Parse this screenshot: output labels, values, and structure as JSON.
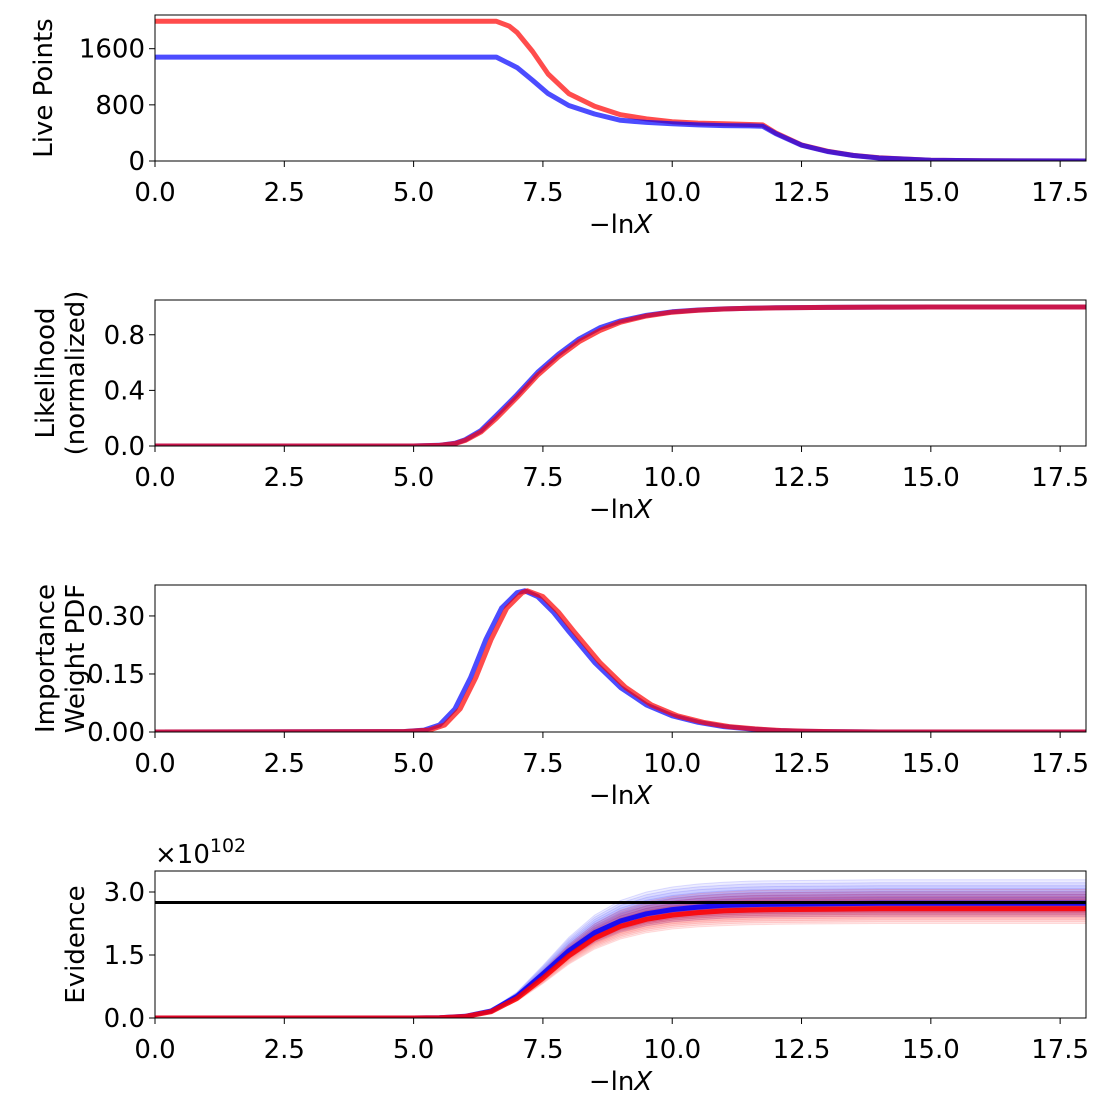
{
  "colors": {
    "run_a": "#0000ff",
    "run_b": "#ff0000",
    "reference": "#000000",
    "axes": "#000000",
    "background": "#ffffff"
  },
  "chart_data": [
    {
      "type": "line",
      "xlabel": "−lnX",
      "ylabel": "Live Points",
      "xlim": [
        0,
        18
      ],
      "ylim": [
        0,
        2080
      ],
      "xticks": [
        "0.0",
        "2.5",
        "5.0",
        "7.5",
        "10.0",
        "12.5",
        "15.0",
        "17.5"
      ],
      "yticks": [
        "0",
        "800",
        "1600"
      ],
      "ytick_values": [
        0,
        800,
        1600
      ],
      "series": [
        {
          "color": "#ff0000",
          "x": [
            0,
            6.6,
            6.85,
            7.0,
            7.3,
            7.6,
            8.0,
            8.5,
            9.0,
            9.5,
            10.0,
            10.5,
            11.0,
            11.5,
            11.75,
            12.0,
            12.5,
            13.0,
            13.5,
            14.0,
            15.0,
            16.0,
            18.0
          ],
          "y": [
            1990,
            1990,
            1920,
            1830,
            1560,
            1240,
            960,
            780,
            660,
            600,
            560,
            540,
            530,
            520,
            515,
            400,
            230,
            140,
            80,
            45,
            12,
            3,
            0
          ]
        },
        {
          "color": "#0000ff",
          "x": [
            0,
            6.6,
            7.0,
            7.3,
            7.6,
            8.0,
            8.5,
            9.0,
            9.5,
            10.0,
            10.5,
            11.0,
            11.5,
            11.75,
            12.0,
            12.5,
            13.0,
            13.5,
            14.0,
            15.0,
            16.0,
            18.0
          ],
          "y": [
            1480,
            1480,
            1330,
            1150,
            960,
            790,
            670,
            580,
            550,
            530,
            515,
            505,
            500,
            495,
            390,
            225,
            135,
            78,
            43,
            11,
            3,
            0
          ]
        }
      ]
    },
    {
      "type": "line",
      "xlabel": "−lnX",
      "ylabel": "Likelihood",
      "ylabel2": "(normalized)",
      "xlim": [
        0,
        18
      ],
      "ylim": [
        0,
        1.05
      ],
      "xticks": [
        "0.0",
        "2.5",
        "5.0",
        "7.5",
        "10.0",
        "12.5",
        "15.0",
        "17.5"
      ],
      "yticks": [
        "0.0",
        "0.4",
        "0.8"
      ],
      "ytick_values": [
        0,
        0.4,
        0.8
      ],
      "series": [
        {
          "color": "#0000ff",
          "x": [
            0,
            5.0,
            5.5,
            5.8,
            6.0,
            6.3,
            6.6,
            7.0,
            7.4,
            7.8,
            8.2,
            8.6,
            9.0,
            9.5,
            10.0,
            10.5,
            11.0,
            11.5,
            12.0,
            13.0,
            14.0,
            15.0,
            18.0
          ],
          "y": [
            0,
            0,
            0.005,
            0.02,
            0.045,
            0.11,
            0.22,
            0.37,
            0.53,
            0.66,
            0.77,
            0.85,
            0.9,
            0.94,
            0.965,
            0.978,
            0.986,
            0.991,
            0.994,
            0.997,
            0.999,
            1.0,
            1.0
          ]
        },
        {
          "color": "#ff0000",
          "x": [
            0,
            5.0,
            5.5,
            5.8,
            6.0,
            6.3,
            6.6,
            7.0,
            7.4,
            7.8,
            8.2,
            8.6,
            9.0,
            9.5,
            10.0,
            10.5,
            11.0,
            11.5,
            12.0,
            13.0,
            14.0,
            15.0,
            18.0
          ],
          "y": [
            0,
            0,
            0.004,
            0.017,
            0.04,
            0.1,
            0.2,
            0.35,
            0.51,
            0.64,
            0.75,
            0.83,
            0.89,
            0.935,
            0.962,
            0.976,
            0.985,
            0.99,
            0.993,
            0.997,
            0.999,
            1.0,
            1.0
          ]
        }
      ]
    },
    {
      "type": "line",
      "xlabel": "−lnX",
      "ylabel": "Importance",
      "ylabel2": "Weight PDF",
      "xlim": [
        0,
        18
      ],
      "ylim": [
        0,
        0.38
      ],
      "xticks": [
        "0.0",
        "2.5",
        "5.0",
        "7.5",
        "10.0",
        "12.5",
        "15.0",
        "17.5"
      ],
      "yticks": [
        "0.00",
        "0.15",
        "0.30"
      ],
      "ytick_values": [
        0,
        0.15,
        0.3
      ],
      "series": [
        {
          "color": "#0000ff",
          "x": [
            0,
            4.8,
            5.2,
            5.5,
            5.8,
            6.1,
            6.4,
            6.7,
            7.0,
            7.15,
            7.4,
            7.7,
            8.0,
            8.5,
            9.0,
            9.5,
            10.0,
            10.5,
            11.0,
            11.5,
            12.0,
            12.5,
            13.0,
            14.0,
            18.0
          ],
          "y": [
            0,
            0.001,
            0.005,
            0.018,
            0.06,
            0.14,
            0.24,
            0.32,
            0.36,
            0.365,
            0.35,
            0.31,
            0.26,
            0.18,
            0.115,
            0.07,
            0.042,
            0.025,
            0.014,
            0.008,
            0.004,
            0.002,
            0.001,
            0,
            0
          ]
        },
        {
          "color": "#ff0000",
          "x": [
            0,
            4.8,
            5.3,
            5.6,
            5.9,
            6.2,
            6.5,
            6.8,
            7.1,
            7.2,
            7.5,
            7.8,
            8.1,
            8.6,
            9.1,
            9.6,
            10.1,
            10.6,
            11.1,
            11.6,
            12.1,
            12.6,
            13.1,
            14.0,
            18.0
          ],
          "y": [
            0,
            0.001,
            0.005,
            0.018,
            0.06,
            0.14,
            0.24,
            0.32,
            0.36,
            0.365,
            0.35,
            0.31,
            0.26,
            0.18,
            0.115,
            0.07,
            0.042,
            0.025,
            0.014,
            0.008,
            0.004,
            0.002,
            0.001,
            0,
            0
          ]
        }
      ]
    },
    {
      "type": "area",
      "xlabel": "−lnX",
      "ylabel": "Evidence",
      "offset_base": "×10",
      "offset_exp": "102",
      "xlim": [
        0,
        18
      ],
      "ylim": [
        0,
        3.5
      ],
      "xticks": [
        "0.0",
        "2.5",
        "5.0",
        "7.5",
        "10.0",
        "12.5",
        "15.0",
        "17.5"
      ],
      "yticks": [
        "0.0",
        "1.5",
        "3.0"
      ],
      "ytick_values": [
        0,
        1.5,
        3.0
      ],
      "reference_value": 2.75,
      "x": [
        0,
        5.0,
        5.5,
        6.0,
        6.5,
        7.0,
        7.5,
        8.0,
        8.5,
        9.0,
        9.5,
        10.0,
        10.5,
        11.0,
        11.5,
        12.0,
        13.0,
        14.0,
        15.0,
        16.0,
        18.0
      ],
      "series": [
        {
          "color": "#0000ff",
          "mean": [
            0,
            0,
            0.005,
            0.04,
            0.17,
            0.52,
            1.05,
            1.6,
            2.03,
            2.31,
            2.48,
            2.58,
            2.64,
            2.68,
            2.7,
            2.71,
            2.72,
            2.73,
            2.73,
            2.73,
            2.73
          ],
          "lower": [
            0,
            0,
            0.004,
            0.035,
            0.15,
            0.46,
            0.93,
            1.42,
            1.8,
            2.05,
            2.2,
            2.29,
            2.34,
            2.38,
            2.4,
            2.41,
            2.42,
            2.42,
            2.42,
            2.42,
            2.42
          ],
          "upper": [
            0,
            0,
            0.006,
            0.05,
            0.2,
            0.62,
            1.25,
            1.92,
            2.45,
            2.8,
            3.0,
            3.12,
            3.19,
            3.23,
            3.26,
            3.27,
            3.28,
            3.29,
            3.29,
            3.29,
            3.29
          ]
        },
        {
          "color": "#ff0000",
          "mean": [
            0,
            0,
            0.004,
            0.035,
            0.15,
            0.47,
            0.95,
            1.48,
            1.9,
            2.18,
            2.35,
            2.45,
            2.51,
            2.55,
            2.57,
            2.58,
            2.59,
            2.6,
            2.6,
            2.6,
            2.6
          ],
          "lower": [
            0,
            0,
            0.003,
            0.03,
            0.13,
            0.4,
            0.82,
            1.28,
            1.64,
            1.88,
            2.03,
            2.12,
            2.17,
            2.2,
            2.22,
            2.23,
            2.24,
            2.25,
            2.25,
            2.25,
            2.25
          ],
          "upper": [
            0,
            0,
            0.005,
            0.045,
            0.18,
            0.56,
            1.13,
            1.75,
            2.24,
            2.57,
            2.77,
            2.89,
            2.96,
            3.0,
            3.03,
            3.04,
            3.05,
            3.06,
            3.06,
            3.06,
            3.06
          ]
        }
      ]
    }
  ]
}
